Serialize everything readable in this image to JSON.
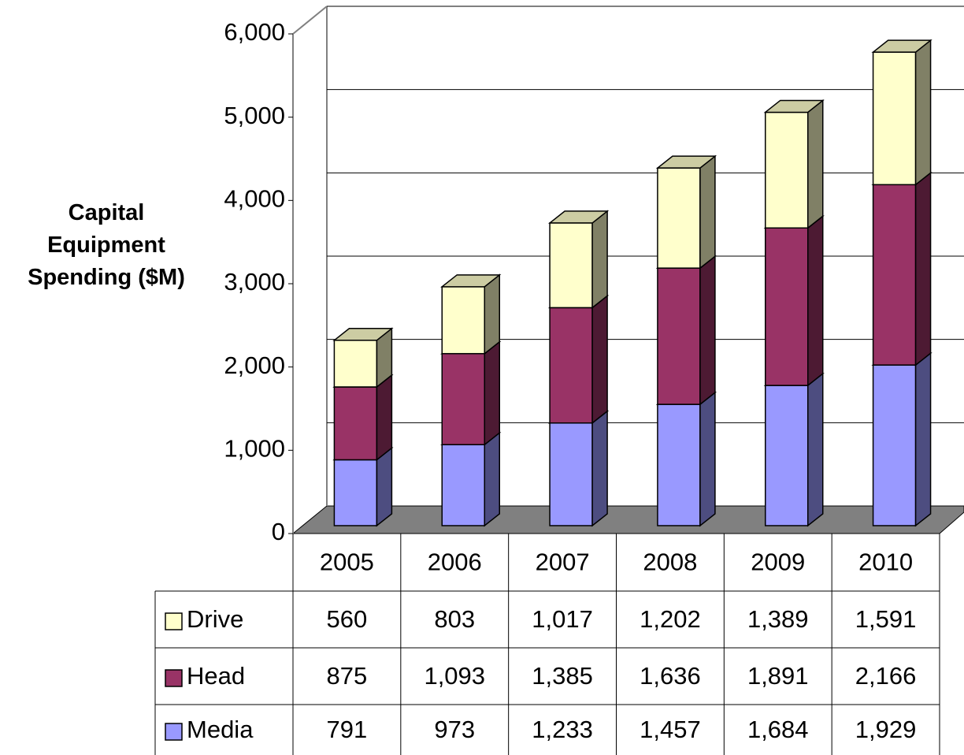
{
  "chart_data": {
    "type": "bar3d_stacked",
    "y_label": "Capital Equipment Spending ($M)",
    "categories": [
      "2005",
      "2006",
      "2007",
      "2008",
      "2009",
      "2010"
    ],
    "series": [
      {
        "name": "Media",
        "color": "#9999ff",
        "values": [
          791,
          973,
          1233,
          1457,
          1684,
          1929
        ],
        "value_labels": [
          "791",
          "973",
          "1,233",
          "1,457",
          "1,684",
          "1,929"
        ]
      },
      {
        "name": "Head",
        "color": "#993366",
        "values": [
          875,
          1093,
          1385,
          1636,
          1891,
          2166
        ],
        "value_labels": [
          "875",
          "1,093",
          "1,385",
          "1,636",
          "1,891",
          "2,166"
        ]
      },
      {
        "name": "Drive",
        "color": "#ffffcc",
        "values": [
          560,
          803,
          1017,
          1202,
          1389,
          1591
        ],
        "value_labels": [
          "560",
          "803",
          "1,017",
          "1,202",
          "1,389",
          "1,591"
        ]
      }
    ],
    "ylim": [
      0,
      6000
    ],
    "yticks": [
      0,
      {
        "value": 1000,
        "label": "1,000"
      },
      {
        "value": 2000,
        "label": "2,000"
      },
      {
        "value": 3000,
        "label": "3,000"
      },
      {
        "value": 4000,
        "label": "4,000"
      },
      {
        "value": 5000,
        "label": "5,000"
      },
      {
        "value": 6000,
        "label": "6,000"
      }
    ],
    "grid": true
  }
}
